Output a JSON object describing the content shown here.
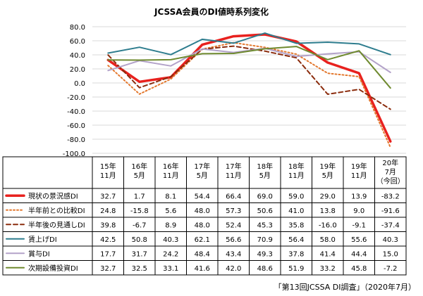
{
  "title": "JCSSA会員のDI値時系列変化",
  "source": "「第13回JCSSA DI調査」（2020年7月）",
  "colors": {
    "gridline": "#d9d9d9",
    "table_border": "#000000"
  },
  "chart_data": {
    "type": "line",
    "title": "JCSSA会員のDI値時系列変化",
    "ylim": [
      -100,
      80
    ],
    "yticks": [
      "80.0",
      "60.0",
      "40.0",
      "20.0",
      "0.0",
      "-20.0",
      "-40.0",
      "-60.0",
      "-80.0",
      "-100.0"
    ],
    "grid": true,
    "legend": "table-left",
    "categories": [
      {
        "line1": "15年",
        "line2": "11月",
        "line3": ""
      },
      {
        "line1": "16年",
        "line2": "5月",
        "line3": ""
      },
      {
        "line1": "16年",
        "line2": "11月",
        "line3": ""
      },
      {
        "line1": "17年",
        "line2": "5月",
        "line3": ""
      },
      {
        "line1": "17年",
        "line2": "11月",
        "line3": ""
      },
      {
        "line1": "18年",
        "line2": "5月",
        "line3": ""
      },
      {
        "line1": "18年",
        "line2": "11月",
        "line3": ""
      },
      {
        "line1": "19年",
        "line2": "5月",
        "line3": ""
      },
      {
        "line1": "19年",
        "line2": "11月",
        "line3": ""
      },
      {
        "line1": "20年",
        "line2": "7月",
        "line3": "（今回）"
      }
    ],
    "series": [
      {
        "name": "現状の景況感DI",
        "color": "#e8211e",
        "dash": "solid",
        "width": 3.5,
        "values": [
          32.7,
          1.7,
          8.1,
          54.4,
          66.4,
          69.0,
          59.0,
          29.0,
          13.9,
          -83.2
        ],
        "labels": [
          "32.7",
          "1.7",
          "8.1",
          "54.4",
          "66.4",
          "69.0",
          "59.0",
          "29.0",
          "13.9",
          "-83.2"
        ]
      },
      {
        "name": "半年前との比較DI",
        "color": "#e3782e",
        "dash": "dot",
        "width": 2,
        "values": [
          24.8,
          -15.8,
          5.6,
          48.0,
          57.3,
          50.6,
          41.0,
          13.8,
          9.0,
          -91.6
        ],
        "labels": [
          "24.8",
          "-15.8",
          "5.6",
          "48.0",
          "57.3",
          "50.6",
          "41.0",
          "13.8",
          "9.0",
          "-91.6"
        ]
      },
      {
        "name": "半年後の見通しDI",
        "color": "#8b2c0d",
        "dash": "dash",
        "width": 2,
        "values": [
          39.8,
          -6.7,
          8.9,
          48.0,
          52.4,
          45.3,
          35.8,
          -16.0,
          -9.1,
          -37.4
        ],
        "labels": [
          "39.8",
          "-6.7",
          "8.9",
          "48.0",
          "52.4",
          "45.3",
          "35.8",
          "-16.0",
          "-9.1",
          "-37.4"
        ]
      },
      {
        "name": "賃上げDI",
        "color": "#2e7d8e",
        "dash": "solid",
        "width": 2,
        "values": [
          42.5,
          50.8,
          40.3,
          62.1,
          56.6,
          70.9,
          56.4,
          58.0,
          55.6,
          40.3
        ],
        "labels": [
          "42.5",
          "50.8",
          "40.3",
          "62.1",
          "56.6",
          "70.9",
          "56.4",
          "58.0",
          "55.6",
          "40.3"
        ]
      },
      {
        "name": "賞与DI",
        "color": "#b3a2c9",
        "dash": "solid",
        "width": 2,
        "values": [
          17.7,
          31.7,
          24.2,
          48.4,
          43.4,
          49.3,
          37.8,
          41.4,
          44.4,
          15.0
        ],
        "labels": [
          "17.7",
          "31.7",
          "24.2",
          "48.4",
          "43.4",
          "49.3",
          "37.8",
          "41.4",
          "44.4",
          "15.0"
        ]
      },
      {
        "name": "次期設備投資DI",
        "color": "#6f8a2f",
        "dash": "solid",
        "width": 2,
        "values": [
          32.7,
          32.5,
          33.1,
          41.6,
          42.0,
          48.6,
          51.9,
          33.2,
          45.8,
          -7.2
        ],
        "labels": [
          "32.7",
          "32.5",
          "33.1",
          "41.6",
          "42.0",
          "48.6",
          "51.9",
          "33.2",
          "45.8",
          "-7.2"
        ]
      }
    ]
  }
}
